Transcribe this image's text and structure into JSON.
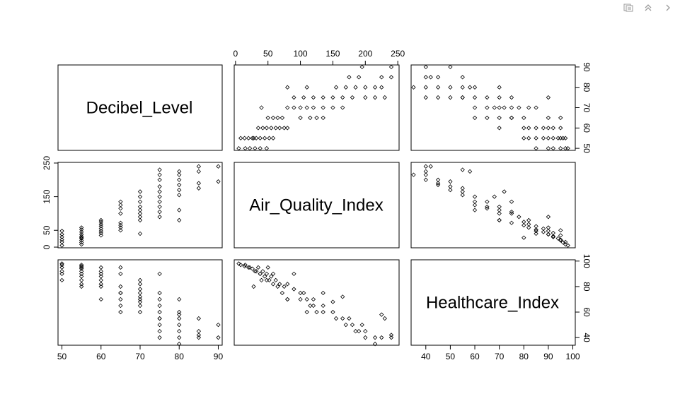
{
  "toolbar": {
    "icons": [
      "copy-plot-icon",
      "collapse-icon",
      "chevron-right-icon"
    ]
  },
  "chart_data": {
    "type": "scatter-matrix",
    "variables": [
      "Decibel_Level",
      "Air_Quality_Index",
      "Healthcare_Index"
    ],
    "ranges": {
      "Decibel_Level": [
        49,
        91
      ],
      "Air_Quality_Index": [
        -2,
        252
      ],
      "Healthcare_Index": [
        34,
        101
      ]
    },
    "ticks": {
      "Decibel_Level": [
        50,
        60,
        70,
        80,
        90
      ],
      "Air_Quality_Index": [
        0,
        50,
        100,
        150,
        200,
        250
      ],
      "Air_Quality_Index_left": [
        0,
        50,
        150,
        250
      ],
      "Healthcare_Index": [
        40,
        60,
        80,
        100
      ],
      "Healthcare_Index_bottom": [
        40,
        50,
        60,
        70,
        80,
        90,
        100
      ]
    },
    "points": [
      {
        "db": 50,
        "aqi": 5,
        "hc": 98
      },
      {
        "db": 50,
        "aqi": 15,
        "hc": 97
      },
      {
        "db": 50,
        "aqi": 22,
        "hc": 95
      },
      {
        "db": 50,
        "aqi": 30,
        "hc": 92
      },
      {
        "db": 50,
        "aqi": 38,
        "hc": 90
      },
      {
        "db": 50,
        "aqi": 48,
        "hc": 85
      },
      {
        "db": 55,
        "aqi": 8,
        "hc": 97
      },
      {
        "db": 55,
        "aqi": 14,
        "hc": 96
      },
      {
        "db": 55,
        "aqi": 20,
        "hc": 95
      },
      {
        "db": 55,
        "aqi": 26,
        "hc": 94
      },
      {
        "db": 55,
        "aqi": 32,
        "hc": 92
      },
      {
        "db": 55,
        "aqi": 38,
        "hc": 90
      },
      {
        "db": 55,
        "aqi": 45,
        "hc": 88
      },
      {
        "db": 55,
        "aqi": 52,
        "hc": 85
      },
      {
        "db": 55,
        "aqi": 58,
        "hc": 82
      },
      {
        "db": 55,
        "aqi": 28,
        "hc": 80
      },
      {
        "db": 60,
        "aqi": 35,
        "hc": 95
      },
      {
        "db": 60,
        "aqi": 42,
        "hc": 92
      },
      {
        "db": 60,
        "aqi": 48,
        "hc": 90
      },
      {
        "db": 60,
        "aqi": 55,
        "hc": 88
      },
      {
        "db": 60,
        "aqi": 62,
        "hc": 85
      },
      {
        "db": 60,
        "aqi": 68,
        "hc": 82
      },
      {
        "db": 60,
        "aqi": 75,
        "hc": 80
      },
      {
        "db": 60,
        "aqi": 80,
        "hc": 70
      },
      {
        "db": 65,
        "aqi": 50,
        "hc": 95
      },
      {
        "db": 65,
        "aqi": 58,
        "hc": 90
      },
      {
        "db": 65,
        "aqi": 65,
        "hc": 80
      },
      {
        "db": 65,
        "aqi": 72,
        "hc": 75
      },
      {
        "db": 65,
        "aqi": 100,
        "hc": 70
      },
      {
        "db": 65,
        "aqi": 115,
        "hc": 65
      },
      {
        "db": 65,
        "aqi": 125,
        "hc": 60
      },
      {
        "db": 65,
        "aqi": 135,
        "hc": 75
      },
      {
        "db": 70,
        "aqi": 40,
        "hc": 85
      },
      {
        "db": 70,
        "aqi": 80,
        "hc": 82
      },
      {
        "db": 70,
        "aqi": 90,
        "hc": 78
      },
      {
        "db": 70,
        "aqi": 100,
        "hc": 75
      },
      {
        "db": 70,
        "aqi": 110,
        "hc": 70
      },
      {
        "db": 70,
        "aqi": 120,
        "hc": 65
      },
      {
        "db": 70,
        "aqi": 135,
        "hc": 60
      },
      {
        "db": 70,
        "aqi": 150,
        "hc": 68
      },
      {
        "db": 70,
        "aqi": 165,
        "hc": 72
      },
      {
        "db": 75,
        "aqi": 90,
        "hc": 90
      },
      {
        "db": 75,
        "aqi": 105,
        "hc": 75
      },
      {
        "db": 75,
        "aqi": 120,
        "hc": 70
      },
      {
        "db": 75,
        "aqi": 135,
        "hc": 65
      },
      {
        "db": 75,
        "aqi": 150,
        "hc": 60
      },
      {
        "db": 75,
        "aqi": 165,
        "hc": 55
      },
      {
        "db": 75,
        "aqi": 180,
        "hc": 50
      },
      {
        "db": 75,
        "aqi": 200,
        "hc": 45
      },
      {
        "db": 75,
        "aqi": 215,
        "hc": 40
      },
      {
        "db": 75,
        "aqi": 230,
        "hc": 55
      },
      {
        "db": 80,
        "aqi": 80,
        "hc": 70
      },
      {
        "db": 80,
        "aqi": 110,
        "hc": 60
      },
      {
        "db": 80,
        "aqi": 155,
        "hc": 55
      },
      {
        "db": 80,
        "aqi": 170,
        "hc": 50
      },
      {
        "db": 80,
        "aqi": 185,
        "hc": 45
      },
      {
        "db": 80,
        "aqi": 200,
        "hc": 40
      },
      {
        "db": 80,
        "aqi": 215,
        "hc": 35
      },
      {
        "db": 80,
        "aqi": 225,
        "hc": 58
      },
      {
        "db": 85,
        "aqi": 175,
        "hc": 55
      },
      {
        "db": 85,
        "aqi": 190,
        "hc": 45
      },
      {
        "db": 85,
        "aqi": 225,
        "hc": 40
      },
      {
        "db": 85,
        "aqi": 240,
        "hc": 42
      },
      {
        "db": 90,
        "aqi": 195,
        "hc": 50
      },
      {
        "db": 90,
        "aqi": 240,
        "hc": 40
      }
    ]
  }
}
